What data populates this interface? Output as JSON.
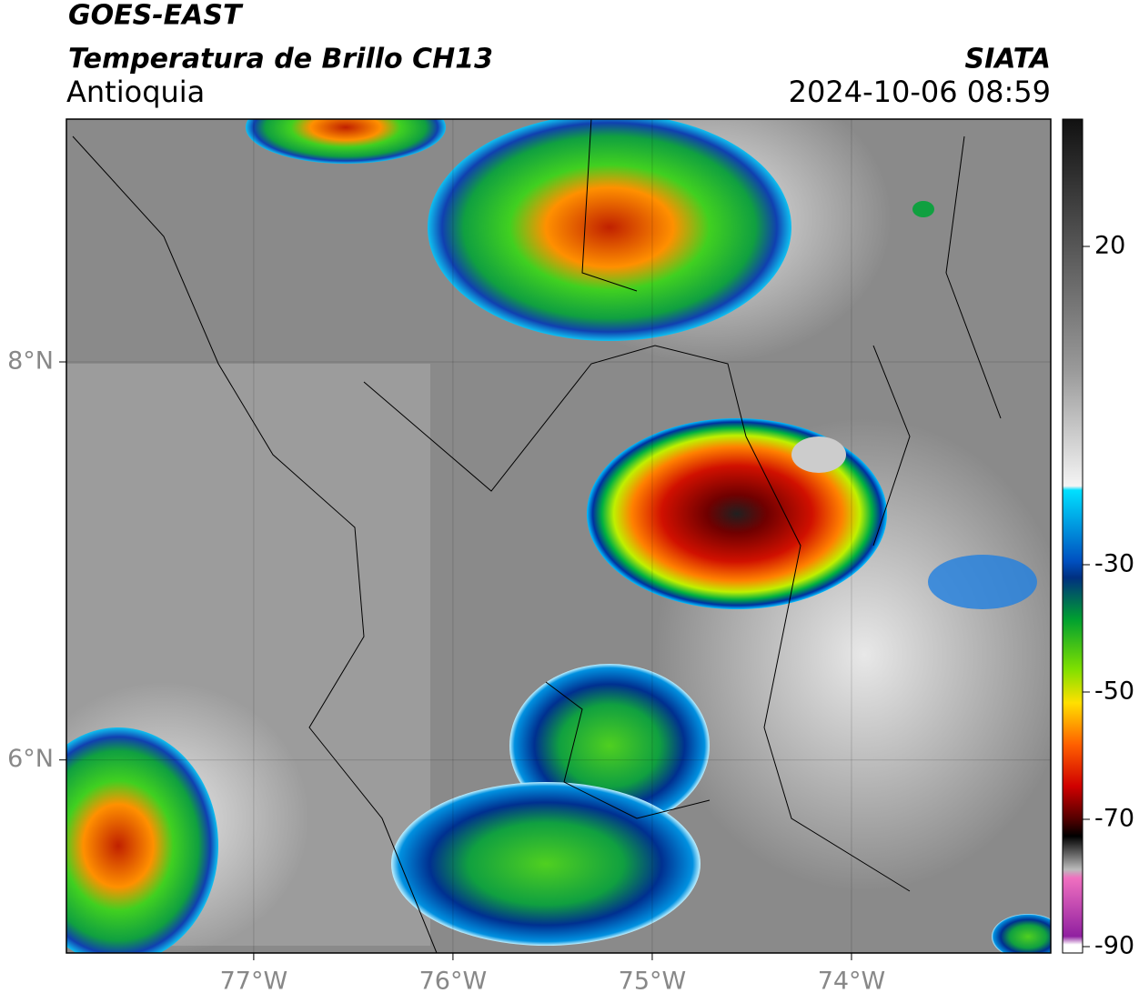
{
  "header": {
    "satellite": "GOES-EAST",
    "product": "Temperatura de Brillo CH13",
    "region": "Antioquia",
    "source": "SIATA",
    "datetime": "2024-10-06 08:59"
  },
  "map": {
    "xlim": [
      -77.94,
      -73.0
    ],
    "ylim": [
      5.03,
      9.22
    ],
    "xticks": [
      {
        "value": -77,
        "label": "77°W"
      },
      {
        "value": -76,
        "label": "76°W"
      },
      {
        "value": -75,
        "label": "75°W"
      },
      {
        "value": -74,
        "label": "74°W"
      }
    ],
    "yticks": [
      {
        "value": 8,
        "label": "8°N"
      },
      {
        "value": 6,
        "label": "6°N"
      }
    ],
    "grid": true
  },
  "colorbar": {
    "lim": [
      -91,
      40
    ],
    "ticks": [
      20,
      -30,
      -50,
      -70,
      -90
    ]
  }
}
